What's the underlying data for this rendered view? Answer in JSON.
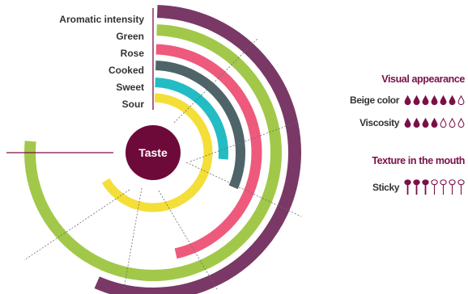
{
  "chart_data": {
    "type": "radial-bar",
    "center_label": "Taste",
    "series": [
      {
        "name": "Aromatic intensity",
        "value": 0.56,
        "color": "#7a3866"
      },
      {
        "name": "Green",
        "value": 0.76,
        "color": "#a2c84a"
      },
      {
        "name": "Rose",
        "value": 0.46,
        "color": "#ee5a7c"
      },
      {
        "name": "Cooked",
        "value": 0.31,
        "color": "#4e6468"
      },
      {
        "name": "Sweet",
        "value": 0.26,
        "color": "#23bcc5"
      },
      {
        "name": "Sour",
        "value": 0.66,
        "color": "#f4de38"
      }
    ],
    "max": 1
  },
  "visual_appearance": {
    "title": "Visual appearance",
    "items": [
      {
        "label": "Beige color",
        "level": 6,
        "max": 7
      },
      {
        "label": "Viscosity",
        "level": 4,
        "max": 7
      }
    ]
  },
  "texture": {
    "title": "Texture in the mouth",
    "items": [
      {
        "label": "Sticky",
        "level": 3,
        "max": 7
      }
    ]
  },
  "colors": {
    "accent": "#7a1046",
    "center": "#6e0a3a",
    "label_text": "#333333"
  }
}
